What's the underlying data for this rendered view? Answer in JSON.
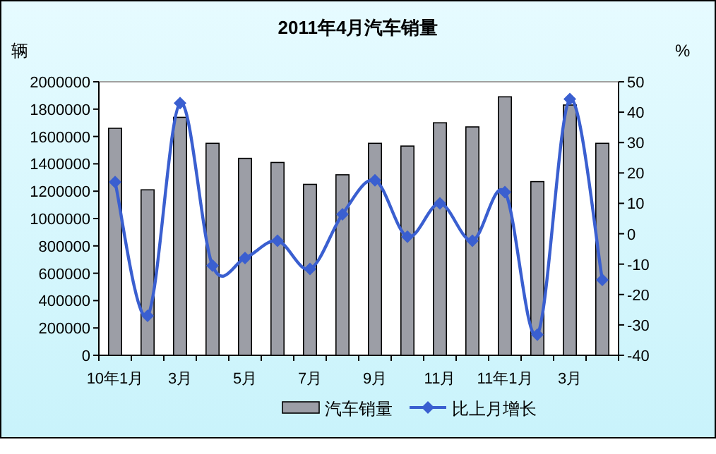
{
  "chart_data": {
    "type": "bar",
    "title": "2011年4月汽车销量",
    "ylabel": "辆",
    "y2label": "%",
    "categories": [
      "10年1月",
      null,
      "3月",
      null,
      "5月",
      null,
      "7月",
      null,
      "9月",
      null,
      "11月",
      null,
      "11年1月",
      null,
      "3月",
      null
    ],
    "series": [
      {
        "name": "汽车销量",
        "color": "#9c9ea6",
        "values": [
          1660000,
          1210000,
          1740000,
          1550000,
          1440000,
          1410000,
          1250000,
          1320000,
          1550000,
          1530000,
          1700000,
          1670000,
          1890000,
          1270000,
          1830000,
          1550000
        ]
      },
      {
        "name": "比上月增长",
        "type": "line",
        "axis": "y2",
        "color": "#3a5fd0",
        "marker": "diamond",
        "values": [
          17,
          -27,
          43,
          -10.5,
          -8,
          -2.3,
          -11.6,
          6.4,
          17.6,
          -1,
          10,
          -2.3,
          13.7,
          -33.2,
          44.3,
          -15.2
        ]
      }
    ],
    "ylim": [
      0,
      2000000
    ],
    "yticks": [
      0,
      200000,
      400000,
      600000,
      800000,
      1000000,
      1200000,
      1400000,
      1600000,
      1800000,
      2000000
    ],
    "y2lim": [
      -40,
      50
    ],
    "y2ticks": [
      -40,
      -30,
      -20,
      -10,
      0,
      10,
      20,
      30,
      40,
      50
    ],
    "grid": false,
    "legend": "bottom"
  }
}
